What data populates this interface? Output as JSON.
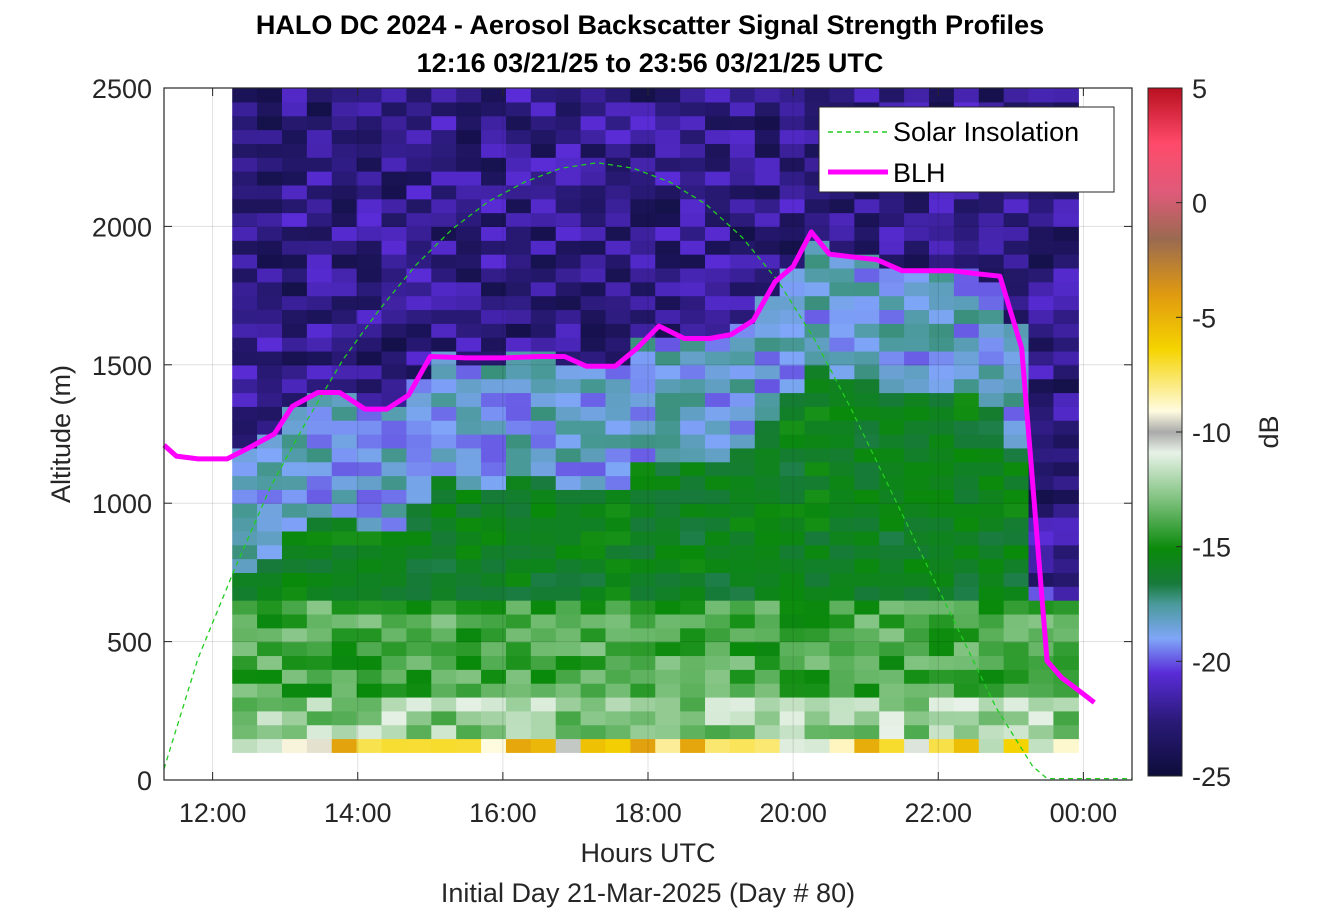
{
  "chart_data": {
    "type": "heatmap",
    "title": "HALO DC 2024 - Aerosol Backscatter Signal Strength Profiles",
    "subtitle": "12:16 03/21/25 to 23:56 03/21/25  UTC",
    "xlabel": "Hours UTC",
    "footer": "Initial Day 21-Mar-2025 (Day # 80)",
    "ylabel": "Altitude (m)",
    "colorbar_label": "dB",
    "xlim": [
      11.33,
      24.67
    ],
    "ylim": [
      0,
      2500
    ],
    "x_ticks": [
      12,
      14,
      16,
      18,
      20,
      22,
      24
    ],
    "x_tick_labels": [
      "12:00",
      "14:00",
      "16:00",
      "18:00",
      "20:00",
      "22:00",
      "00:00"
    ],
    "y_ticks": [
      0,
      500,
      1000,
      1500,
      2000,
      2500
    ],
    "y_tick_labels": [
      "0",
      "500",
      "1000",
      "1500",
      "2000",
      "2500"
    ],
    "color_ticks": [
      5,
      0,
      -5,
      -10,
      -15,
      -20,
      -25
    ],
    "color_tick_labels": [
      "5",
      "0",
      "-5",
      "-10",
      "-15",
      "-20",
      "-25"
    ],
    "color_range": [
      -25,
      5
    ],
    "grid": true,
    "legend_position": "top-right",
    "legend": [
      {
        "label": "Solar Insolation",
        "style": "dashed",
        "color": "#22cc22"
      },
      {
        "label": "BLH",
        "style": "solid",
        "color": "#ff00ff"
      }
    ],
    "heatmap": {
      "x_start": 12.27,
      "x_end": 23.93,
      "y_start": 100,
      "y_end": 2500,
      "n_columns": 34,
      "approximate_layers": [
        {
          "y_from": 100,
          "y_to": 150,
          "db": -8
        },
        {
          "y_from": 150,
          "y_to": 300,
          "db": -12
        },
        {
          "y_from": 300,
          "y_to": 700,
          "db": -14
        },
        {
          "y_from": 700,
          "y_to": 1000,
          "db": -16
        },
        {
          "y_from": 1000,
          "y_to": 1300,
          "db": -20
        },
        {
          "y_from": 1300,
          "y_to": 2500,
          "db": -23
        }
      ]
    },
    "series": [
      {
        "name": "BLH",
        "x": [
          11.33,
          11.5,
          11.8,
          12.2,
          12.5,
          12.85,
          13.1,
          13.45,
          13.75,
          14.1,
          14.4,
          14.7,
          15.0,
          15.5,
          16.0,
          16.5,
          16.85,
          17.15,
          17.55,
          17.85,
          18.15,
          18.5,
          18.85,
          19.15,
          19.45,
          19.75,
          20.0,
          20.25,
          20.5,
          20.8,
          21.15,
          21.5,
          21.85,
          22.2,
          22.5,
          22.85,
          23.15,
          23.5,
          23.7,
          23.95,
          24.15
        ],
        "y": [
          1210,
          1170,
          1160,
          1160,
          1200,
          1250,
          1350,
          1400,
          1400,
          1340,
          1340,
          1390,
          1530,
          1525,
          1525,
          1530,
          1530,
          1495,
          1495,
          1560,
          1640,
          1595,
          1595,
          1610,
          1660,
          1800,
          1855,
          1980,
          1900,
          1890,
          1880,
          1840,
          1840,
          1840,
          1830,
          1820,
          1560,
          430,
          370,
          320,
          280
        ]
      },
      {
        "name": "Solar Insolation",
        "x": [
          11.33,
          11.8,
          12.3,
          12.8,
          13.3,
          13.8,
          14.3,
          14.8,
          15.3,
          15.8,
          16.3,
          16.8,
          17.3,
          17.8,
          18.3,
          18.8,
          19.3,
          19.8,
          20.3,
          20.8,
          21.3,
          21.8,
          22.3,
          22.8,
          23.3,
          23.5,
          23.8,
          24.2,
          24.67
        ],
        "y": [
          40,
          440,
          760,
          1060,
          1300,
          1520,
          1700,
          1860,
          1990,
          2090,
          2160,
          2210,
          2230,
          2210,
          2160,
          2080,
          1960,
          1800,
          1590,
          1340,
          1070,
          800,
          530,
          260,
          50,
          5,
          5,
          5,
          5
        ]
      }
    ]
  }
}
